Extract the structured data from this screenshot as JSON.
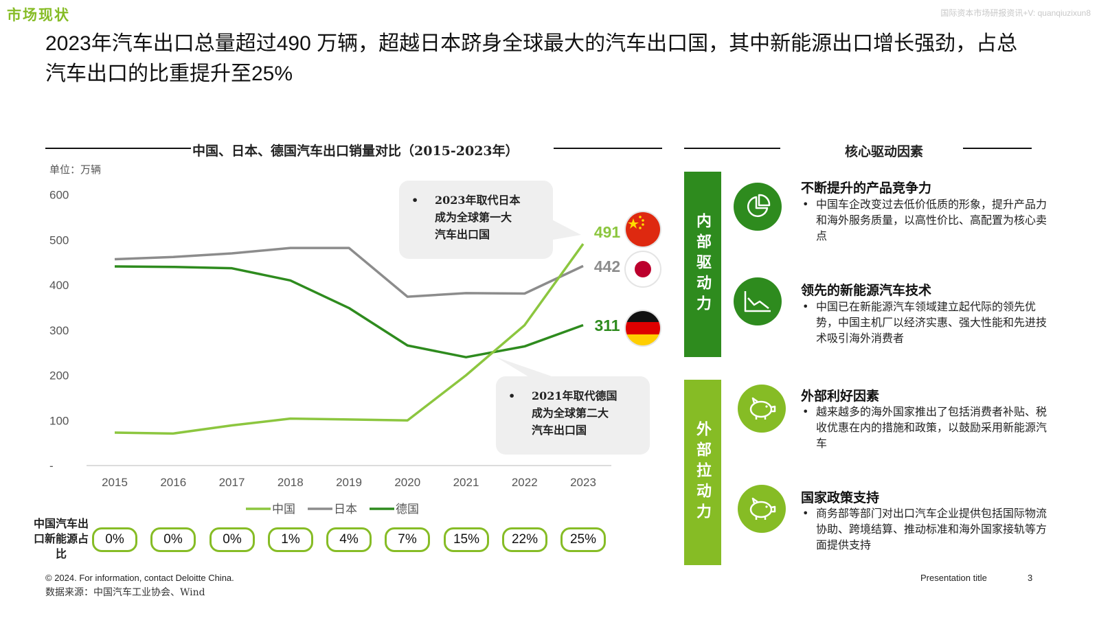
{
  "section_tag": "市场现状",
  "watermark": "国际资本市场研报资讯+V: quanqiuzixun8",
  "headline": "2023年汽车出口总量超过490 万辆，超越日本跻身全球最大的汽车出口国，其中新能源出口增长强劲，占总汽车出口的比重提升至25%",
  "chart_data": {
    "type": "line",
    "title": "中国、日本、德国汽车出口销量对比（2015-2023年）",
    "unit": "单位：万辆",
    "x": [
      "2015",
      "2016",
      "2017",
      "2018",
      "2019",
      "2020",
      "2021",
      "2022",
      "2023"
    ],
    "ylim": [
      0,
      600
    ],
    "yticks": [
      "-",
      "100",
      "200",
      "300",
      "400",
      "500",
      "600"
    ],
    "grid": false,
    "legend_position": "bottom",
    "series": [
      {
        "name": "中国",
        "color": "#8cc63f",
        "values": [
          73,
          71,
          89,
          104,
          102,
          100,
          200,
          311,
          491
        ],
        "end_label": "491",
        "flag": "china-flag"
      },
      {
        "name": "日本",
        "color": "#8c8c8c",
        "values": [
          457,
          462,
          470,
          482,
          482,
          374,
          382,
          381,
          442
        ],
        "end_label": "442",
        "flag": "japan-flag"
      },
      {
        "name": "德国",
        "color": "#2e8b1e",
        "values": [
          441,
          440,
          437,
          410,
          349,
          266,
          240,
          264,
          311
        ],
        "end_label": "311",
        "flag": "germany-flag"
      }
    ],
    "annotations": [
      {
        "text": "2023年取代日本成为全球第一大汽车出口国"
      },
      {
        "text": "2021年取代德国成为全球第二大汽车出口国"
      }
    ],
    "nev_share_label": "中国汽车出口新能源占比",
    "nev_share": [
      "0%",
      "0%",
      "0%",
      "1%",
      "4%",
      "7%",
      "15%",
      "22%",
      "25%"
    ]
  },
  "callouts": [
    {
      "lines": [
        "2023年取代日本",
        "成为全球第一大",
        "汽车出口国"
      ]
    },
    {
      "lines": [
        "2021年取代德国",
        "成为全球第二大",
        "汽车出口国"
      ]
    }
  ],
  "core": {
    "title": "核心驱动因素",
    "groups": [
      {
        "label": "内部驱动力",
        "color": "#2e8b1e"
      },
      {
        "label": "外部拉动力",
        "color": "#86bc25"
      }
    ],
    "factors": [
      {
        "title": "不断提升的产品竞争力",
        "desc": "中国车企改变过去低价低质的形象，提升产品力和海外服务质量，以高性价比、高配置为核心卖点",
        "icon": "pie-chart-icon",
        "color": "#2e8b1e"
      },
      {
        "title": "领先的新能源汽车技术",
        "desc": "中国已在新能源汽车领域建立起代际的领先优势，中国主机厂以经济实惠、强大性能和先进技术吸引海外消费者",
        "icon": "line-chart-icon",
        "color": "#2e8b1e"
      },
      {
        "title": "外部利好因素",
        "desc": "越来越多的海外国家推出了包括消费者补贴、税收优惠在内的措施和政策，以鼓励采用新能源汽车",
        "icon": "piggy-bank-icon",
        "color": "#86bc25"
      },
      {
        "title": "国家政策支持",
        "desc": "商务部等部门对出口汽车企业提供包括国际物流协助、跨境结算、推动标准和海外国家接轨等方面提供支持",
        "icon": "piggy-bank-icon",
        "color": "#86bc25"
      }
    ]
  },
  "footer": {
    "copyright": "© 2024. For information, contact Deloitte China.",
    "source": "数据来源：中国汽车工业协会、Wind",
    "presentation_title": "Presentation title",
    "page": "3"
  }
}
